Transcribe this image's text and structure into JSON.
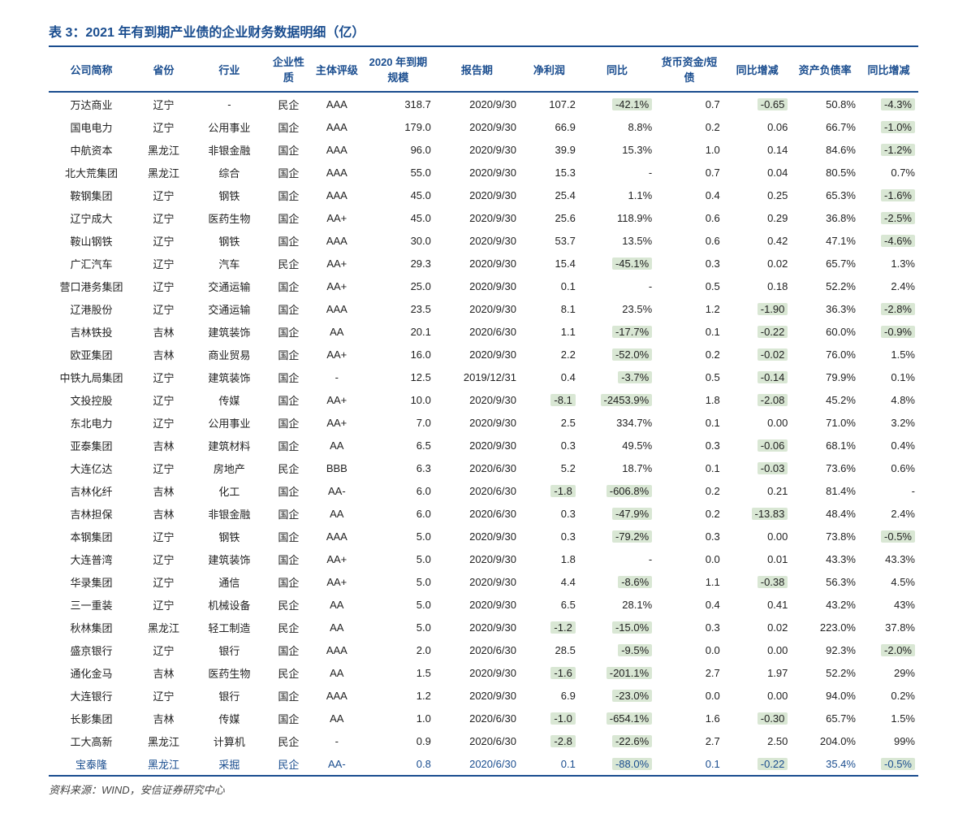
{
  "title": "表 3：2021 年有到期产业债的企业财务数据明细（亿）",
  "source": "资料来源：WIND，安信证券研究中心",
  "colors": {
    "primary": "#1a4d8f",
    "highlight_bg": "#d9e7d4",
    "text": "#222222",
    "background": "#ffffff"
  },
  "columns": [
    "公司简称",
    "省份",
    "行业",
    "企业性质",
    "主体评级",
    "2020 年到期规模",
    "报告期",
    "净利润",
    "同比",
    "货币资金/短债",
    "同比增减",
    "资产负债率",
    "同比增减"
  ],
  "highlight_cols": [
    "yoy1",
    "yoy2",
    "yoy3"
  ],
  "rows": [
    {
      "company": "万达商业",
      "prov": "辽宁",
      "ind": "-",
      "nature": "民企",
      "rating": "AAA",
      "scale": "318.7",
      "report": "2020/9/30",
      "profit": "107.2",
      "yoy1": "-42.1%",
      "ratio": "0.7",
      "yoy2": "-0.65",
      "debt": "50.8%",
      "yoy3": "-4.3%"
    },
    {
      "company": "国电电力",
      "prov": "辽宁",
      "ind": "公用事业",
      "nature": "国企",
      "rating": "AAA",
      "scale": "179.0",
      "report": "2020/9/30",
      "profit": "66.9",
      "yoy1": "8.8%",
      "ratio": "0.2",
      "yoy2": "0.06",
      "debt": "66.7%",
      "yoy3": "-1.0%"
    },
    {
      "company": "中航资本",
      "prov": "黑龙江",
      "ind": "非银金融",
      "nature": "国企",
      "rating": "AAA",
      "scale": "96.0",
      "report": "2020/9/30",
      "profit": "39.9",
      "yoy1": "15.3%",
      "ratio": "1.0",
      "yoy2": "0.14",
      "debt": "84.6%",
      "yoy3": "-1.2%"
    },
    {
      "company": "北大荒集团",
      "prov": "黑龙江",
      "ind": "综合",
      "nature": "国企",
      "rating": "AAA",
      "scale": "55.0",
      "report": "2020/9/30",
      "profit": "15.3",
      "yoy1": "-",
      "ratio": "0.7",
      "yoy2": "0.04",
      "debt": "80.5%",
      "yoy3": "0.7%"
    },
    {
      "company": "鞍钢集团",
      "prov": "辽宁",
      "ind": "钢铁",
      "nature": "国企",
      "rating": "AAA",
      "scale": "45.0",
      "report": "2020/9/30",
      "profit": "25.4",
      "yoy1": "1.1%",
      "ratio": "0.4",
      "yoy2": "0.25",
      "debt": "65.3%",
      "yoy3": "-1.6%"
    },
    {
      "company": "辽宁成大",
      "prov": "辽宁",
      "ind": "医药生物",
      "nature": "国企",
      "rating": "AA+",
      "scale": "45.0",
      "report": "2020/9/30",
      "profit": "25.6",
      "yoy1": "118.9%",
      "ratio": "0.6",
      "yoy2": "0.29",
      "debt": "36.8%",
      "yoy3": "-2.5%"
    },
    {
      "company": "鞍山钢铁",
      "prov": "辽宁",
      "ind": "钢铁",
      "nature": "国企",
      "rating": "AAA",
      "scale": "30.0",
      "report": "2020/9/30",
      "profit": "53.7",
      "yoy1": "13.5%",
      "ratio": "0.6",
      "yoy2": "0.42",
      "debt": "47.1%",
      "yoy3": "-4.6%"
    },
    {
      "company": "广汇汽车",
      "prov": "辽宁",
      "ind": "汽车",
      "nature": "民企",
      "rating": "AA+",
      "scale": "29.3",
      "report": "2020/9/30",
      "profit": "15.4",
      "yoy1": "-45.1%",
      "ratio": "0.3",
      "yoy2": "0.02",
      "debt": "65.7%",
      "yoy3": "1.3%"
    },
    {
      "company": "营口港务集团",
      "prov": "辽宁",
      "ind": "交通运输",
      "nature": "国企",
      "rating": "AA+",
      "scale": "25.0",
      "report": "2020/9/30",
      "profit": "0.1",
      "yoy1": "-",
      "ratio": "0.5",
      "yoy2": "0.18",
      "debt": "52.2%",
      "yoy3": "2.4%"
    },
    {
      "company": "辽港股份",
      "prov": "辽宁",
      "ind": "交通运输",
      "nature": "国企",
      "rating": "AAA",
      "scale": "23.5",
      "report": "2020/9/30",
      "profit": "8.1",
      "yoy1": "23.5%",
      "ratio": "1.2",
      "yoy2": "-1.90",
      "debt": "36.3%",
      "yoy3": "-2.8%"
    },
    {
      "company": "吉林铁投",
      "prov": "吉林",
      "ind": "建筑装饰",
      "nature": "国企",
      "rating": "AA",
      "scale": "20.1",
      "report": "2020/6/30",
      "profit": "1.1",
      "yoy1": "-17.7%",
      "ratio": "0.1",
      "yoy2": "-0.22",
      "debt": "60.0%",
      "yoy3": "-0.9%"
    },
    {
      "company": "欧亚集团",
      "prov": "吉林",
      "ind": "商业贸易",
      "nature": "国企",
      "rating": "AA+",
      "scale": "16.0",
      "report": "2020/9/30",
      "profit": "2.2",
      "yoy1": "-52.0%",
      "ratio": "0.2",
      "yoy2": "-0.02",
      "debt": "76.0%",
      "yoy3": "1.5%"
    },
    {
      "company": "中铁九局集团",
      "prov": "辽宁",
      "ind": "建筑装饰",
      "nature": "国企",
      "rating": "-",
      "scale": "12.5",
      "report": "2019/12/31",
      "profit": "0.4",
      "yoy1": "-3.7%",
      "ratio": "0.5",
      "yoy2": "-0.14",
      "debt": "79.9%",
      "yoy3": "0.1%"
    },
    {
      "company": "文投控股",
      "prov": "辽宁",
      "ind": "传媒",
      "nature": "国企",
      "rating": "AA+",
      "scale": "10.0",
      "report": "2020/9/30",
      "profit": "-8.1",
      "yoy1": "-2453.9%",
      "ratio": "1.8",
      "yoy2": "-2.08",
      "debt": "45.2%",
      "yoy3": "4.8%"
    },
    {
      "company": "东北电力",
      "prov": "辽宁",
      "ind": "公用事业",
      "nature": "国企",
      "rating": "AA+",
      "scale": "7.0",
      "report": "2020/9/30",
      "profit": "2.5",
      "yoy1": "334.7%",
      "ratio": "0.1",
      "yoy2": "0.00",
      "debt": "71.0%",
      "yoy3": "3.2%"
    },
    {
      "company": "亚泰集团",
      "prov": "吉林",
      "ind": "建筑材料",
      "nature": "国企",
      "rating": "AA",
      "scale": "6.5",
      "report": "2020/9/30",
      "profit": "0.3",
      "yoy1": "49.5%",
      "ratio": "0.3",
      "yoy2": "-0.06",
      "debt": "68.1%",
      "yoy3": "0.4%"
    },
    {
      "company": "大连亿达",
      "prov": "辽宁",
      "ind": "房地产",
      "nature": "民企",
      "rating": "BBB",
      "scale": "6.3",
      "report": "2020/6/30",
      "profit": "5.2",
      "yoy1": "18.7%",
      "ratio": "0.1",
      "yoy2": "-0.03",
      "debt": "73.6%",
      "yoy3": "0.6%"
    },
    {
      "company": "吉林化纤",
      "prov": "吉林",
      "ind": "化工",
      "nature": "国企",
      "rating": "AA-",
      "scale": "6.0",
      "report": "2020/6/30",
      "profit": "-1.8",
      "yoy1": "-606.8%",
      "ratio": "0.2",
      "yoy2": "0.21",
      "debt": "81.4%",
      "yoy3": "-"
    },
    {
      "company": "吉林担保",
      "prov": "吉林",
      "ind": "非银金融",
      "nature": "国企",
      "rating": "AA",
      "scale": "6.0",
      "report": "2020/6/30",
      "profit": "0.3",
      "yoy1": "-47.9%",
      "ratio": "0.2",
      "yoy2": "-13.83",
      "debt": "48.4%",
      "yoy3": "2.4%"
    },
    {
      "company": "本钢集团",
      "prov": "辽宁",
      "ind": "钢铁",
      "nature": "国企",
      "rating": "AAA",
      "scale": "5.0",
      "report": "2020/9/30",
      "profit": "0.3",
      "yoy1": "-79.2%",
      "ratio": "0.3",
      "yoy2": "0.00",
      "debt": "73.8%",
      "yoy3": "-0.5%"
    },
    {
      "company": "大连普湾",
      "prov": "辽宁",
      "ind": "建筑装饰",
      "nature": "国企",
      "rating": "AA+",
      "scale": "5.0",
      "report": "2020/9/30",
      "profit": "1.8",
      "yoy1": "-",
      "ratio": "0.0",
      "yoy2": "0.01",
      "debt": "43.3%",
      "yoy3": "43.3%"
    },
    {
      "company": "华录集团",
      "prov": "辽宁",
      "ind": "通信",
      "nature": "国企",
      "rating": "AA+",
      "scale": "5.0",
      "report": "2020/9/30",
      "profit": "4.4",
      "yoy1": "-8.6%",
      "ratio": "1.1",
      "yoy2": "-0.38",
      "debt": "56.3%",
      "yoy3": "4.5%"
    },
    {
      "company": "三一重装",
      "prov": "辽宁",
      "ind": "机械设备",
      "nature": "民企",
      "rating": "AA",
      "scale": "5.0",
      "report": "2020/9/30",
      "profit": "6.5",
      "yoy1": "28.1%",
      "ratio": "0.4",
      "yoy2": "0.41",
      "debt": "43.2%",
      "yoy3": "43%"
    },
    {
      "company": "秋林集团",
      "prov": "黑龙江",
      "ind": "轻工制造",
      "nature": "民企",
      "rating": "AA",
      "scale": "5.0",
      "report": "2020/9/30",
      "profit": "-1.2",
      "yoy1": "-15.0%",
      "ratio": "0.3",
      "yoy2": "0.02",
      "debt": "223.0%",
      "yoy3": "37.8%"
    },
    {
      "company": "盛京银行",
      "prov": "辽宁",
      "ind": "银行",
      "nature": "国企",
      "rating": "AAA",
      "scale": "2.0",
      "report": "2020/6/30",
      "profit": "28.5",
      "yoy1": "-9.5%",
      "ratio": "0.0",
      "yoy2": "0.00",
      "debt": "92.3%",
      "yoy3": "-2.0%"
    },
    {
      "company": "通化金马",
      "prov": "吉林",
      "ind": "医药生物",
      "nature": "民企",
      "rating": "AA",
      "scale": "1.5",
      "report": "2020/9/30",
      "profit": "-1.6",
      "yoy1": "-201.1%",
      "ratio": "2.7",
      "yoy2": "1.97",
      "debt": "52.2%",
      "yoy3": "29%"
    },
    {
      "company": "大连银行",
      "prov": "辽宁",
      "ind": "银行",
      "nature": "国企",
      "rating": "AAA",
      "scale": "1.2",
      "report": "2020/9/30",
      "profit": "6.9",
      "yoy1": "-23.0%",
      "ratio": "0.0",
      "yoy2": "0.00",
      "debt": "94.0%",
      "yoy3": "0.2%"
    },
    {
      "company": "长影集团",
      "prov": "吉林",
      "ind": "传媒",
      "nature": "国企",
      "rating": "AA",
      "scale": "1.0",
      "report": "2020/6/30",
      "profit": "-1.0",
      "yoy1": "-654.1%",
      "ratio": "1.6",
      "yoy2": "-0.30",
      "debt": "65.7%",
      "yoy3": "1.5%"
    },
    {
      "company": "工大高新",
      "prov": "黑龙江",
      "ind": "计算机",
      "nature": "民企",
      "rating": "-",
      "scale": "0.9",
      "report": "2020/6/30",
      "profit": "-2.8",
      "yoy1": "-22.6%",
      "ratio": "2.7",
      "yoy2": "2.50",
      "debt": "204.0%",
      "yoy3": "99%"
    },
    {
      "company": "宝泰隆",
      "prov": "黑龙江",
      "ind": "采掘",
      "nature": "民企",
      "rating": "AA-",
      "scale": "0.8",
      "report": "2020/6/30",
      "profit": "0.1",
      "yoy1": "-88.0%",
      "ratio": "0.1",
      "yoy2": "-0.22",
      "debt": "35.4%",
      "yoy3": "-0.5%",
      "footer": true
    }
  ]
}
